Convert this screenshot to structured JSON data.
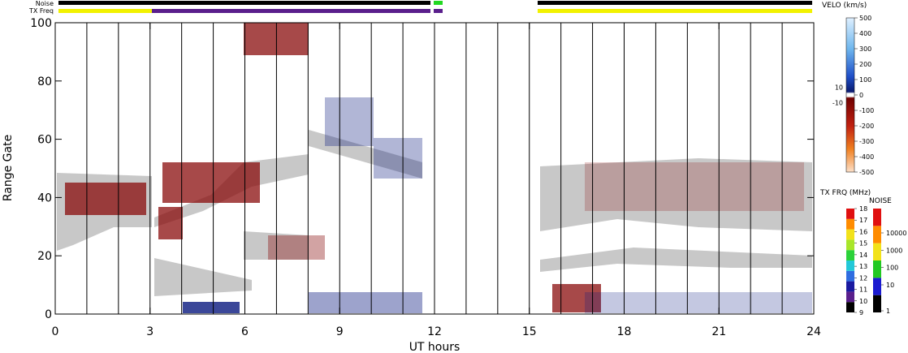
{
  "chart_data": {
    "type": "range-time",
    "xlabel": "UT hours",
    "ylabel": "Range Gate",
    "xlim": [
      0,
      24
    ],
    "xticks": [
      0,
      3,
      6,
      9,
      12,
      15,
      18,
      21,
      24
    ],
    "ylim": [
      0,
      100
    ],
    "yticks": [
      0,
      20,
      40,
      60,
      80,
      100
    ],
    "noise_label": "Noise",
    "txfreq_label": "TX Freq",
    "velo_scale": {
      "title": "VELO (km/s)",
      "lim": [
        -500,
        500
      ],
      "ticks": [
        500,
        400,
        300,
        200,
        100,
        0,
        -100,
        -200,
        -300,
        -400,
        -500
      ],
      "ground_ticks": [
        10,
        -10
      ]
    },
    "txfreq_scale": {
      "title": "TX FRQ (MHz)",
      "lim": [
        9,
        18
      ],
      "ticks": [
        18,
        17,
        16,
        15,
        14,
        13,
        12,
        11,
        10,
        9
      ],
      "colors": [
        "#000000",
        "#5a1f8c",
        "#1a1aa0",
        "#2f6de0",
        "#22c8d8",
        "#2bd23a",
        "#a8e62a",
        "#f2e21a",
        "#ff8c00",
        "#e01010"
      ]
    },
    "noise_scale": {
      "title": "NOISE",
      "ticks": [
        10000,
        1000,
        100,
        10,
        1
      ],
      "colors": [
        "#000000",
        "#1a1ad0",
        "#22c822",
        "#f2e21a",
        "#ff8c00",
        "#e01010"
      ]
    }
  }
}
